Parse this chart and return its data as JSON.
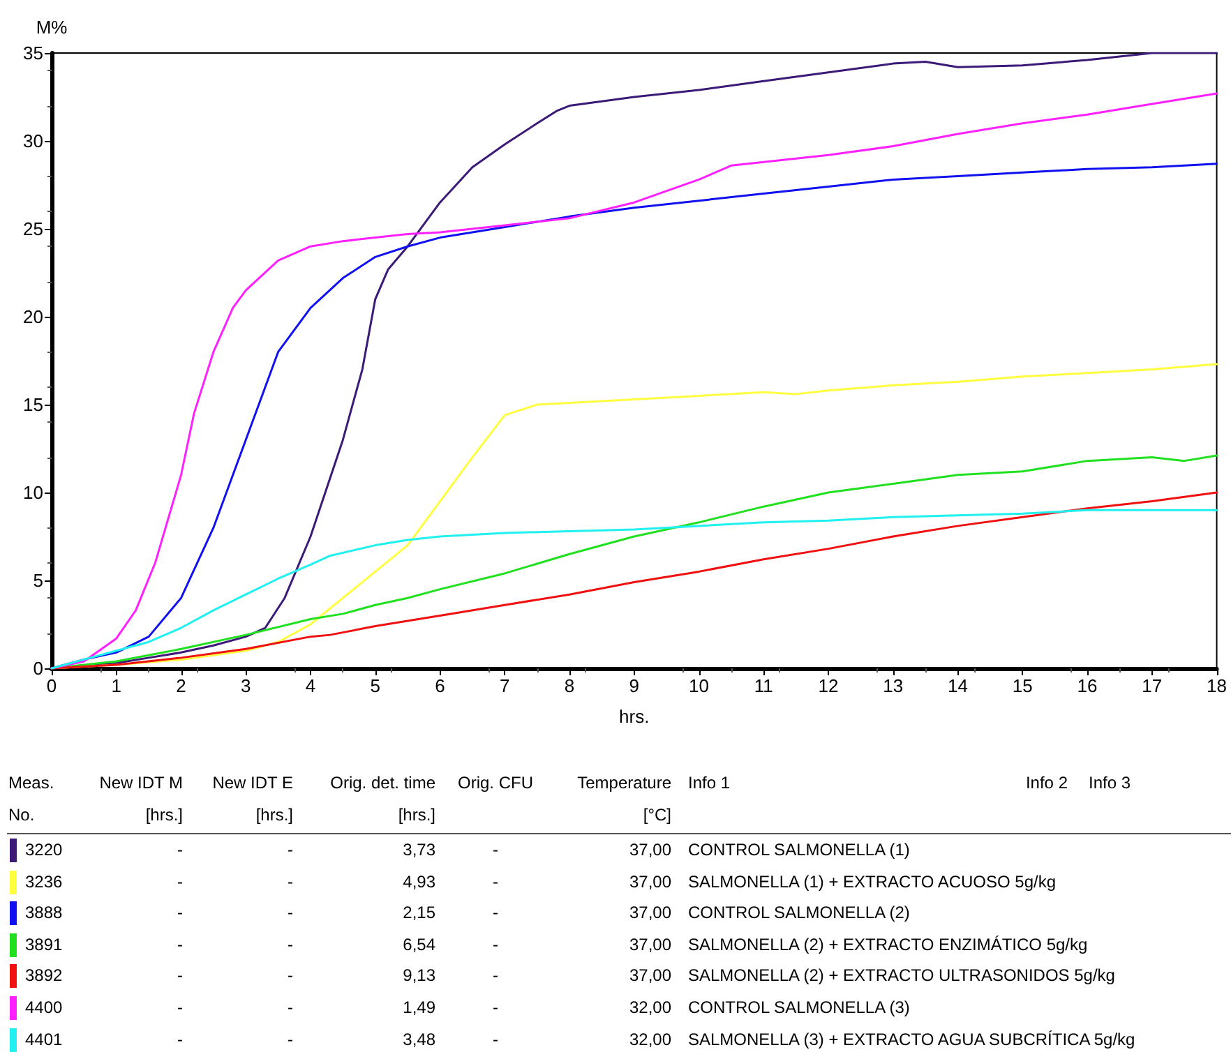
{
  "chart_data": {
    "type": "line",
    "xlabel": "hrs.",
    "ylabel": "M%",
    "xlim": [
      0,
      18
    ],
    "xticks": [
      0,
      1,
      2,
      3,
      4,
      5,
      6,
      7,
      8,
      9,
      10,
      11,
      12,
      13,
      14,
      15,
      16,
      17,
      18
    ],
    "ylim": [
      0,
      35
    ],
    "yticks": [
      0,
      5,
      10,
      15,
      20,
      25,
      30,
      35
    ],
    "legend": "bottom",
    "series": [
      {
        "name": "3220",
        "color": "#3c1a78",
        "x": [
          0,
          1,
          1.5,
          2,
          2.5,
          3,
          3.3,
          3.6,
          4,
          4.5,
          4.8,
          5,
          5.2,
          5.5,
          6,
          6.5,
          7,
          7.5,
          7.8,
          8,
          9,
          10,
          11,
          12,
          13,
          13.5,
          14,
          15,
          16,
          17,
          18
        ],
        "values": [
          0,
          0.3,
          0.6,
          0.9,
          1.3,
          1.8,
          2.3,
          4,
          7.5,
          13,
          17,
          21,
          22.7,
          24,
          26.5,
          28.5,
          29.8,
          31,
          31.7,
          32,
          32.5,
          32.9,
          33.4,
          33.9,
          34.4,
          34.5,
          34.2,
          34.3,
          34.6,
          35,
          35
        ]
      },
      {
        "name": "3236",
        "color": "#ffff40",
        "x": [
          0,
          1,
          2,
          3,
          3.5,
          4,
          4.5,
          5,
          5.5,
          6,
          6.5,
          7,
          7.5,
          8,
          9,
          10,
          11,
          11.5,
          12,
          13,
          14,
          15,
          16,
          17,
          18
        ],
        "values": [
          0,
          0.2,
          0.5,
          1,
          1.5,
          2.5,
          4,
          5.5,
          7,
          9.5,
          12,
          14.4,
          15,
          15.1,
          15.3,
          15.5,
          15.7,
          15.6,
          15.8,
          16.1,
          16.3,
          16.6,
          16.8,
          17,
          17.3
        ]
      },
      {
        "name": "3888",
        "color": "#1010f0",
        "x": [
          0,
          0.5,
          1,
          1.5,
          2,
          2.5,
          3,
          3.5,
          4,
          4.5,
          5,
          5.5,
          6,
          7,
          8,
          9,
          10,
          11,
          12,
          13,
          14,
          15,
          16,
          17,
          18
        ],
        "values": [
          0,
          0.5,
          0.9,
          1.8,
          4,
          8,
          13,
          18,
          20.5,
          22.2,
          23.4,
          24,
          24.5,
          25.1,
          25.7,
          26.2,
          26.6,
          27,
          27.4,
          27.8,
          28,
          28.2,
          28.4,
          28.5,
          28.7
        ]
      },
      {
        "name": "3891",
        "color": "#20e020",
        "x": [
          0,
          1,
          2,
          3,
          4,
          4.5,
          5,
          5.5,
          6,
          7,
          8,
          9,
          10,
          11,
          12,
          13,
          14,
          15,
          16,
          17,
          17.5,
          18
        ],
        "values": [
          0,
          0.4,
          1.1,
          1.9,
          2.8,
          3.1,
          3.6,
          4,
          4.5,
          5.4,
          6.5,
          7.5,
          8.3,
          9.2,
          10,
          10.5,
          11,
          11.2,
          11.8,
          12,
          11.8,
          12.1
        ]
      },
      {
        "name": "3892",
        "color": "#f01010",
        "x": [
          0,
          1,
          2,
          3,
          4,
          4.3,
          5,
          6,
          7,
          8,
          9,
          10,
          11,
          12,
          13,
          14,
          15,
          16,
          17,
          18
        ],
        "values": [
          0,
          0.2,
          0.6,
          1.1,
          1.8,
          1.9,
          2.4,
          3,
          3.6,
          4.2,
          4.9,
          5.5,
          6.2,
          6.8,
          7.5,
          8.1,
          8.6,
          9.1,
          9.5,
          10
        ]
      },
      {
        "name": "4400",
        "color": "#ff20ff",
        "x": [
          0,
          0.5,
          1,
          1.3,
          1.6,
          2,
          2.2,
          2.5,
          2.8,
          3,
          3.5,
          4,
          4.5,
          5,
          5.5,
          6,
          7,
          8,
          9,
          10,
          10.5,
          11,
          12,
          13,
          14,
          15,
          16,
          17,
          18
        ],
        "values": [
          0,
          0.4,
          1.7,
          3.3,
          6,
          11,
          14.5,
          18,
          20.5,
          21.5,
          23.2,
          24,
          24.3,
          24.5,
          24.7,
          24.8,
          25.2,
          25.6,
          26.5,
          27.8,
          28.6,
          28.8,
          29.2,
          29.7,
          30.4,
          31,
          31.5,
          32.1,
          32.7
        ]
      },
      {
        "name": "4401",
        "color": "#20f0f0",
        "x": [
          0,
          0.5,
          1,
          1.5,
          2,
          2.5,
          3,
          3.5,
          4,
          4.3,
          5,
          5.5,
          6,
          7,
          8,
          9,
          10,
          11,
          12,
          13,
          14,
          15,
          16,
          17,
          18
        ],
        "values": [
          0,
          0.5,
          1,
          1.5,
          2.3,
          3.3,
          4.2,
          5.1,
          5.9,
          6.4,
          7,
          7.3,
          7.5,
          7.7,
          7.8,
          7.9,
          8.1,
          8.3,
          8.4,
          8.6,
          8.7,
          8.8,
          9,
          9,
          9
        ]
      }
    ],
    "annotations": [
      "Meas.",
      "New IDT M",
      "New IDT E",
      "Orig. det. time",
      "Orig. CFU",
      "Temperature",
      "Info 1",
      "Info 2",
      "Info 3",
      "No.",
      "[hrs.]",
      "[hrs.]",
      "[hrs.]",
      "[°C]",
      "-",
      "-",
      "3,73",
      "-",
      "37,00",
      "CONTROL SALMONELLA (1)",
      "-",
      "-",
      "4,93",
      "-",
      "37,00",
      "SALMONELLA (1) + EXTRACTO ACUOSO 5g/kg",
      "-",
      "-",
      "2,15",
      "-",
      "37,00",
      "CONTROL SALMONELLA (2)",
      "-",
      "-",
      "6,54",
      "-",
      "37,00",
      "SALMONELLA (2) + EXTRACTO ENZIMÁTICO 5g/kg",
      "-",
      "-",
      "9,13",
      "-",
      "37,00",
      "SALMONELLA (2) + EXTRACTO ULTRASONIDOS 5g/kg",
      "-",
      "-",
      "1,49",
      "-",
      "32,00",
      "CONTROL SALMONELLA (3)",
      "-",
      "-",
      "3,48",
      "-",
      "32,00",
      "SALMONELLA (3) + EXTRACTO AGUA SUBCRÍTICA 5g/kg"
    ]
  }
}
